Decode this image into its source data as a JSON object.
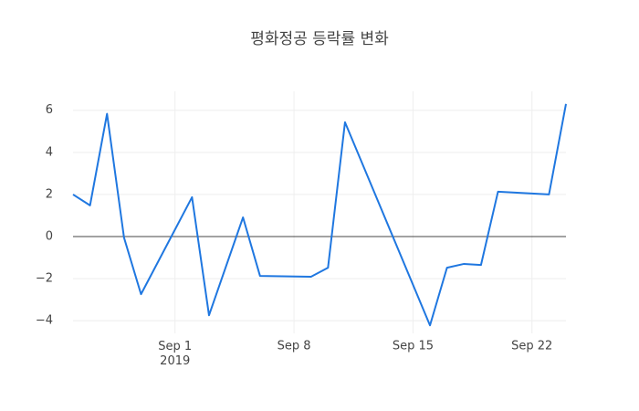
{
  "chart_data": {
    "type": "line",
    "title": "평화정공 등락률 변화",
    "x": [
      "2019-08-26",
      "2019-08-27",
      "2019-08-28",
      "2019-08-29",
      "2019-08-30",
      "2019-09-02",
      "2019-09-03",
      "2019-09-05",
      "2019-09-06",
      "2019-09-09",
      "2019-09-10",
      "2019-09-11",
      "2019-09-16",
      "2019-09-17",
      "2019-09-18",
      "2019-09-19",
      "2019-09-20",
      "2019-09-23",
      "2019-09-24"
    ],
    "series": [
      {
        "color": "#1f77e0",
        "values": [
          2.0,
          1.48,
          5.83,
          -0.05,
          -2.74,
          1.87,
          -3.74,
          0.91,
          -1.87,
          -1.91,
          -1.48,
          5.43,
          -4.22,
          -1.48,
          -1.3,
          -1.35,
          2.13,
          2.0,
          6.3
        ]
      }
    ],
    "xlim": [
      "2019-08-26",
      "2019-09-24"
    ],
    "xticks": [
      {
        "value": "2019-09-01",
        "label": "Sep 1\n2019"
      },
      {
        "value": "2019-09-08",
        "label": "Sep 8"
      },
      {
        "value": "2019-09-15",
        "label": "Sep 15"
      },
      {
        "value": "2019-09-22",
        "label": "Sep 22"
      }
    ],
    "ylim": [
      -4.6,
      6.9
    ],
    "yticks": [
      {
        "value": -4,
        "label": "−4"
      },
      {
        "value": -2,
        "label": "−2"
      },
      0,
      2,
      4,
      6
    ],
    "grid": true
  }
}
